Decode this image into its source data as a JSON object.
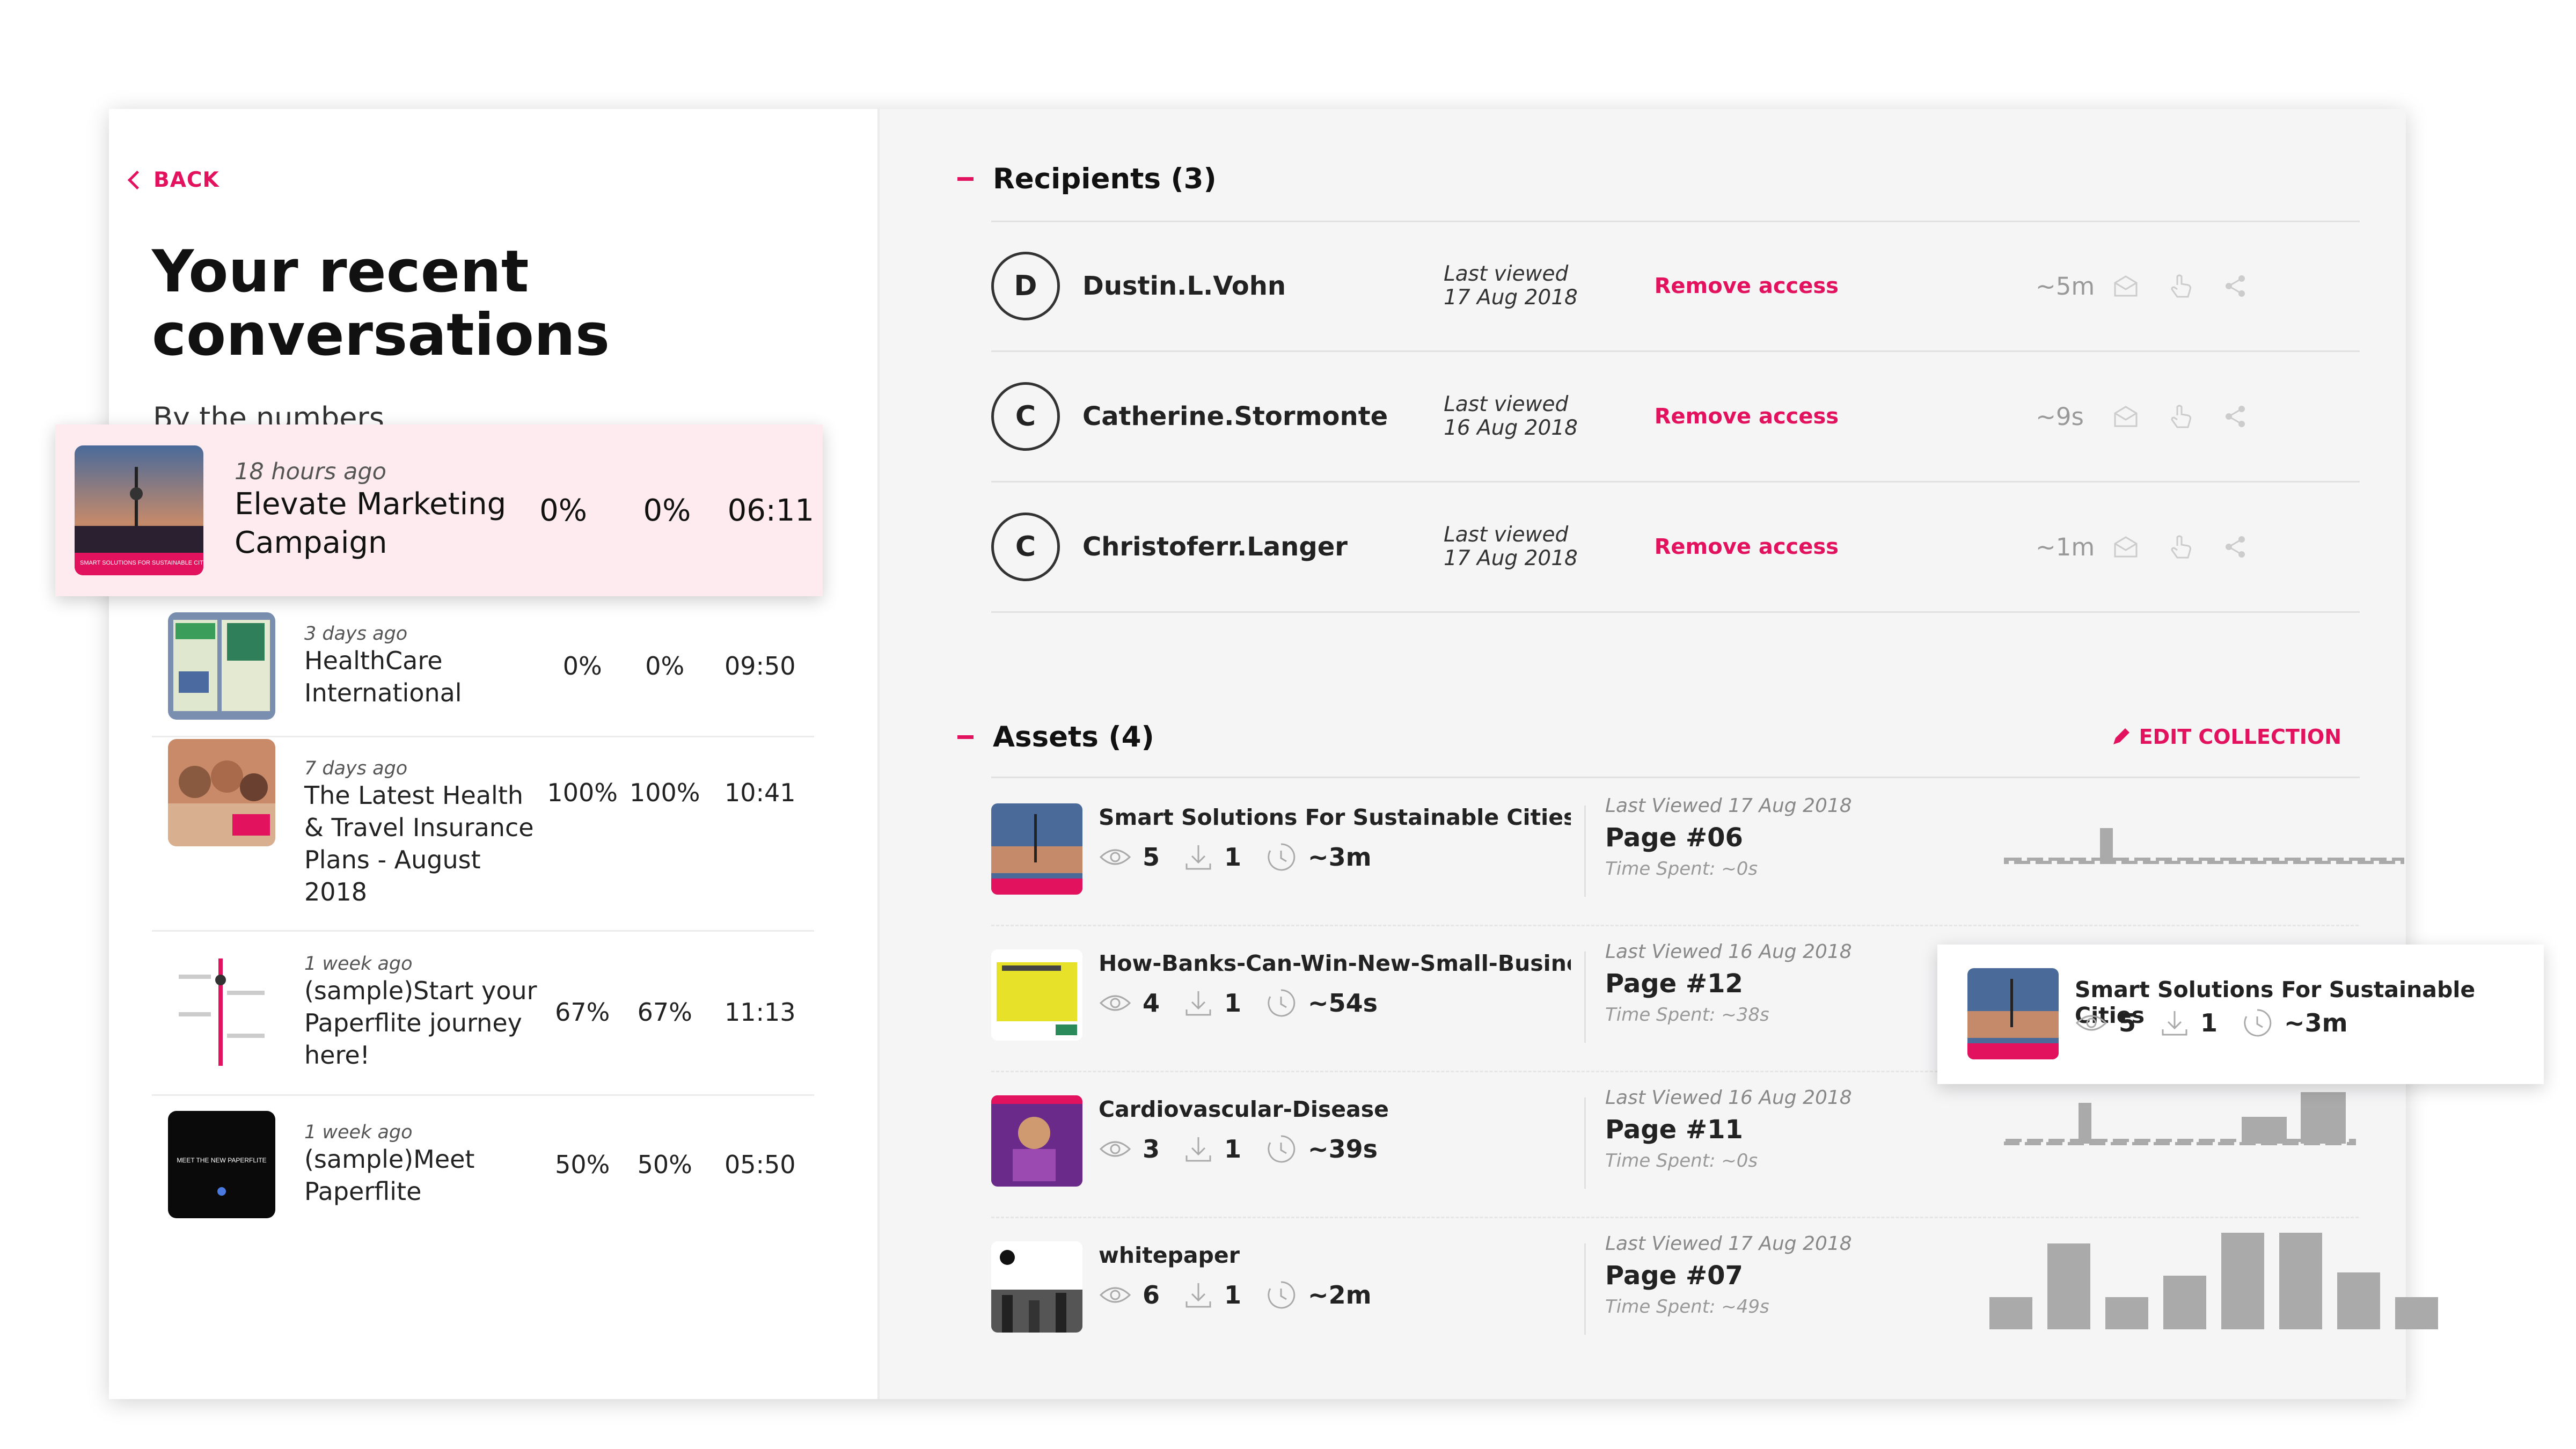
{
  "back_label": "BACK",
  "page_title_line1": "Your recent",
  "page_title_line2": "conversations",
  "subtitle": "By the numbers",
  "highlight": {
    "ago": "18 hours ago",
    "name_line1": "Elevate Marketing",
    "name_line2": "Campaign",
    "c1": "0%",
    "c2": "0%",
    "c3": "06:11"
  },
  "conversations": [
    {
      "ago": "3 days ago",
      "name_lines": [
        "HealthCare",
        "International"
      ],
      "c1": "0%",
      "c2": "0%",
      "c3": "09:50"
    },
    {
      "ago": "7 days ago",
      "name_lines": [
        "The Latest Health",
        "& Travel Insurance",
        "Plans - August",
        "2018"
      ],
      "c1": "100%",
      "c2": "100%",
      "c3": "10:41"
    },
    {
      "ago": "1 week ago",
      "name_lines": [
        "(sample)Start your",
        "Paperflite journey",
        "here!"
      ],
      "c1": "67%",
      "c2": "67%",
      "c3": "11:13"
    },
    {
      "ago": "1 week ago",
      "name_lines": [
        "(sample)Meet",
        "Paperflite"
      ],
      "c1": "50%",
      "c2": "50%",
      "c3": "05:50"
    }
  ],
  "thumb_texts": {
    "meet": "MEET THE NEW PAPERFLITE",
    "smart": "SMART SOLUTIONS FOR SUSTAINABLE CITIES"
  },
  "recipients": {
    "title": "Recipients (3)",
    "items": [
      {
        "initial": "D",
        "name": "Dustin.L.Vohn",
        "lv_label": "Last viewed",
        "lv_date": "17 Aug 2018",
        "remove": "Remove access",
        "dur": "~5m"
      },
      {
        "initial": "C",
        "name": "Catherine.Stormonte",
        "lv_label": "Last viewed",
        "lv_date": "16 Aug 2018",
        "remove": "Remove access",
        "dur": "~9s"
      },
      {
        "initial": "C",
        "name": "Christoferr.Langer",
        "lv_label": "Last viewed",
        "lv_date": "17 Aug 2018",
        "remove": "Remove access",
        "dur": "~1m"
      }
    ]
  },
  "assets": {
    "title": "Assets (4)",
    "edit_label": "EDIT COLLECTION",
    "items": [
      {
        "name": "Smart Solutions For Sustainable Cities",
        "views": "5",
        "downloads": "1",
        "time": "~3m",
        "last_viewed": "Last Viewed 17 Aug 2018",
        "page": "Page #06",
        "time_spent": "Time Spent: ~0s"
      },
      {
        "name": "How-Banks-Can-Win-New-Small-Busines...",
        "views": "4",
        "downloads": "1",
        "time": "~54s",
        "last_viewed": "Last Viewed 16 Aug 2018",
        "page": "Page #12",
        "time_spent": "Time Spent: ~38s"
      },
      {
        "name": "Cardiovascular-Disease",
        "views": "3",
        "downloads": "1",
        "time": "~39s",
        "last_viewed": "Last Viewed 16 Aug 2018",
        "page": "Page #11",
        "time_spent": "Time Spent: ~0s"
      },
      {
        "name": "whitepaper",
        "views": "6",
        "downloads": "1",
        "time": "~2m",
        "last_viewed": "Last Viewed 17 Aug 2018",
        "page": "Page #07",
        "time_spent": "Time Spent: ~49s"
      }
    ]
  },
  "popup": {
    "name": "Smart Solutions For Sustainable Cities",
    "views": "5",
    "downloads": "1",
    "time": "~3m"
  },
  "colors": {
    "accent": "#e2125e",
    "bar": "#a9a9a9"
  },
  "icons": [
    "back-chevron-icon",
    "eye-icon",
    "download-icon",
    "clock-icon",
    "envelope-icon",
    "hand-icon",
    "share-icon",
    "pencil-icon"
  ]
}
